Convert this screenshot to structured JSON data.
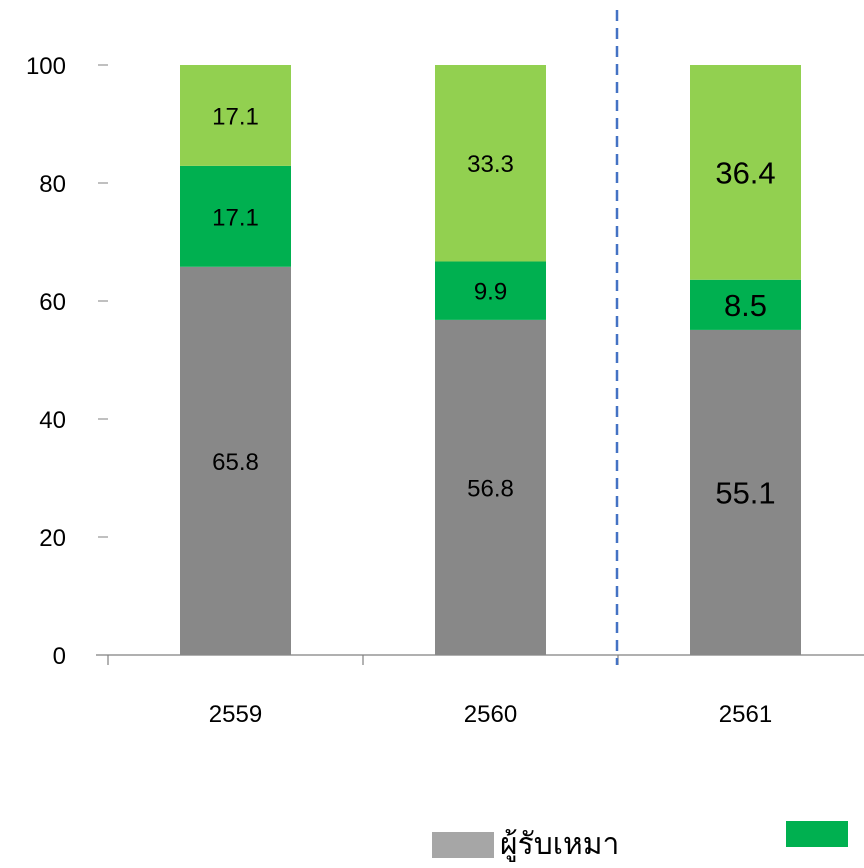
{
  "chart_data": {
    "type": "bar",
    "stacked": true,
    "categories": [
      "2559",
      "2560",
      "2561"
    ],
    "ylim": [
      0,
      100
    ],
    "yticks": [
      0,
      20,
      40,
      60,
      80,
      100
    ],
    "series": [
      {
        "name": "ผู้รับเหมา",
        "color": "#888888",
        "values": [
          65.8,
          56.8,
          55.1
        ],
        "labels": [
          "65.8",
          "56.8",
          "55.1"
        ]
      },
      {
        "color": "#00b050",
        "values": [
          17.1,
          9.9,
          8.5
        ],
        "labels": [
          "17.1",
          "9.9",
          "8.5"
        ]
      },
      {
        "color": "#92d050",
        "values": [
          17.1,
          33.3,
          36.4
        ],
        "labels": [
          "17.1",
          "33.3",
          "36.4"
        ]
      }
    ],
    "divider": {
      "after_category_index": 1,
      "style": "dashed",
      "color": "#4472c4"
    },
    "legend_position": "bottom"
  },
  "legend": {
    "items": [
      {
        "label": "ผู้รับเหมา",
        "color": "#a6a6a6"
      },
      {
        "label": "",
        "color": "#00b050"
      }
    ]
  }
}
